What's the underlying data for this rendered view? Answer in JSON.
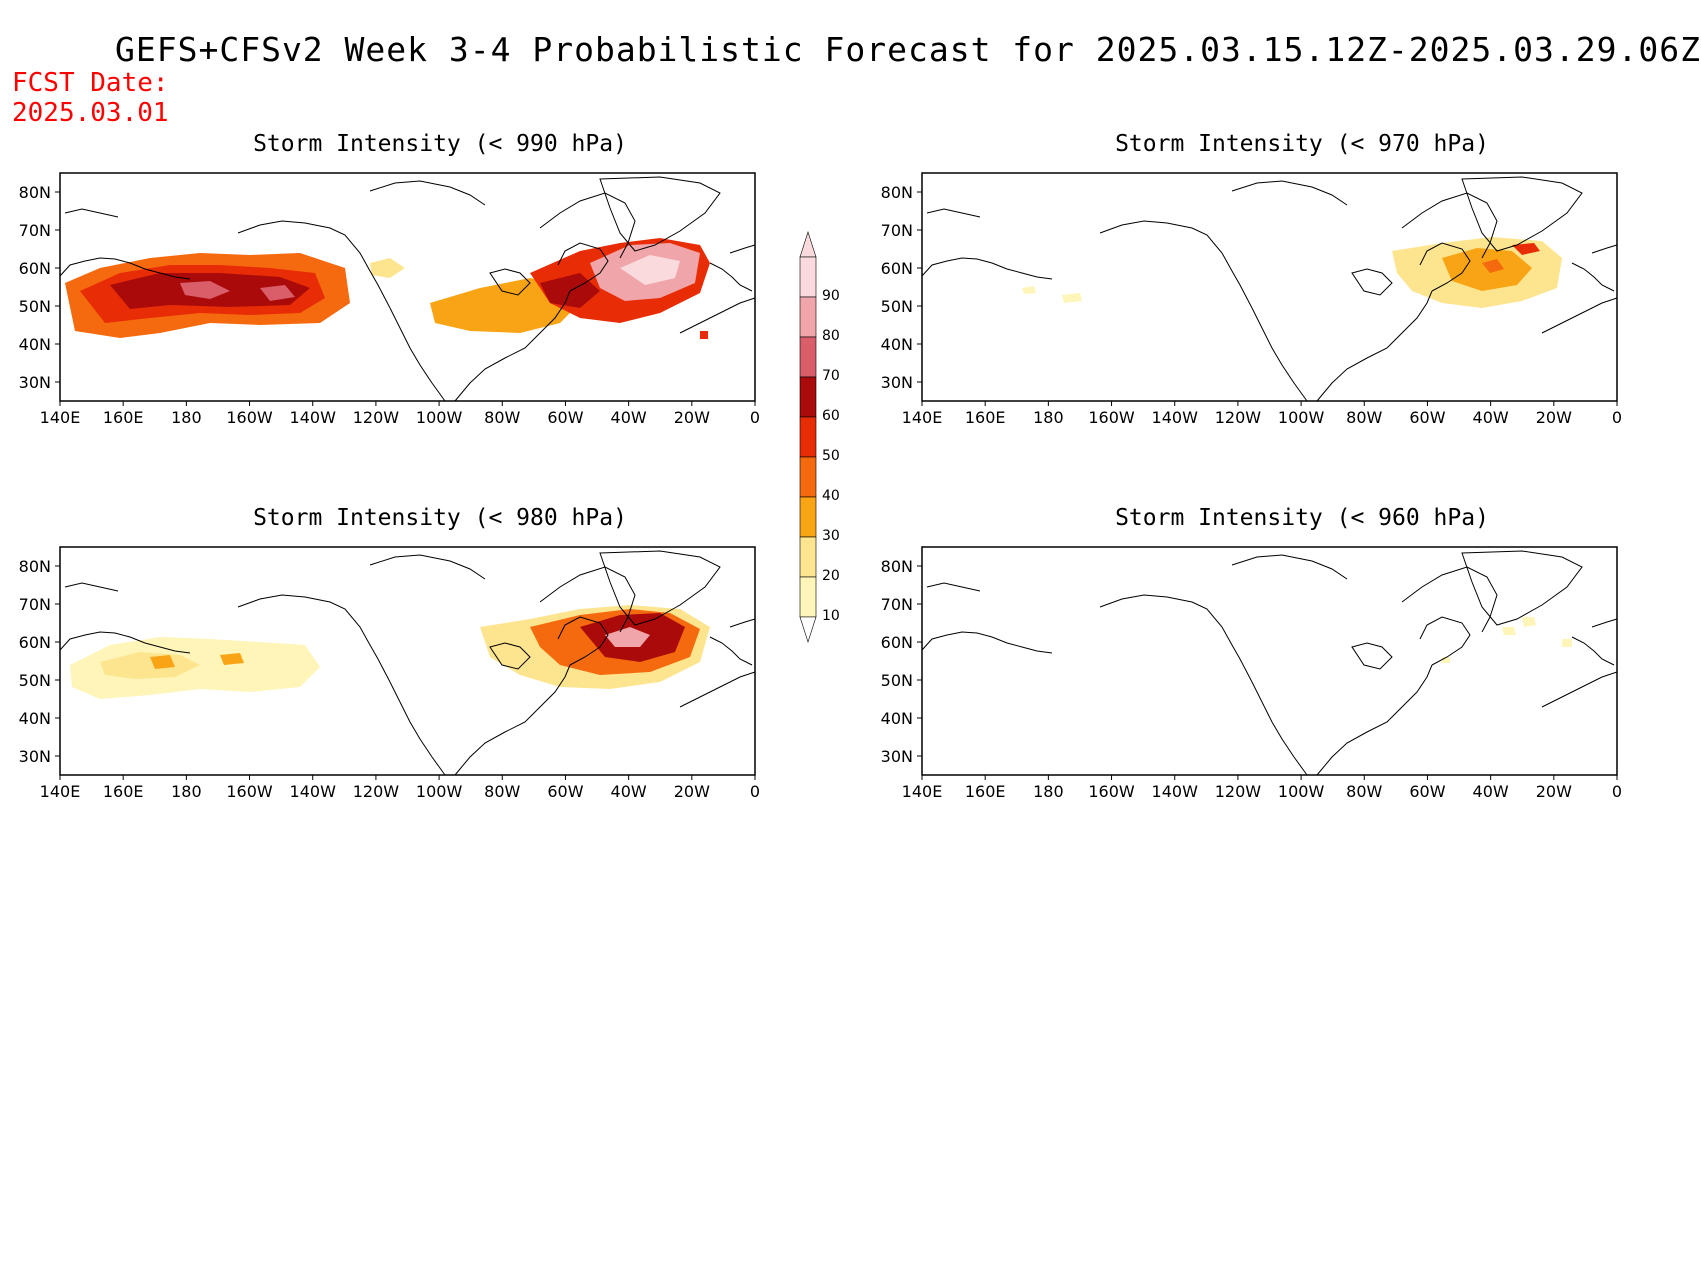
{
  "title": "GEFS+CFSv2 Week 3-4 Probabilistic Forecast for 2025.03.15.12Z-2025.03.29.06Z",
  "fcst_date_label": "FCST Date:",
  "fcst_date": "2025.03.01",
  "colors": {
    "title": "#000000",
    "fcst": "#ff0000",
    "scale": [
      "#fff5b8",
      "#fde58f",
      "#f9a415",
      "#f56a0e",
      "#e82c05",
      "#aa0a0a",
      "#d95e6a",
      "#f0a5aa",
      "#fadadd"
    ]
  },
  "axes": {
    "x_ticks": [
      "140E",
      "160E",
      "180",
      "160W",
      "140W",
      "120W",
      "100W",
      "80W",
      "60W",
      "40W",
      "20W",
      "0"
    ],
    "y_ticks": [
      "80N",
      "70N",
      "60N",
      "50N",
      "40N",
      "30N"
    ]
  },
  "colorbar": {
    "levels": [
      "10",
      "20",
      "30",
      "40",
      "50",
      "60",
      "70",
      "80",
      "90"
    ]
  },
  "panels": [
    {
      "id": "p990",
      "title": "Storm Intensity (< 990 hPa)",
      "x": 60,
      "y": 173
    },
    {
      "id": "p970",
      "title": "Storm Intensity (< 970 hPa)",
      "x": 922,
      "y": 173
    },
    {
      "id": "p980",
      "title": "Storm Intensity (< 980 hPa)",
      "x": 60,
      "y": 547
    },
    {
      "id": "p960",
      "title": "Storm Intensity (< 960 hPa)",
      "x": 922,
      "y": 547
    }
  ]
}
